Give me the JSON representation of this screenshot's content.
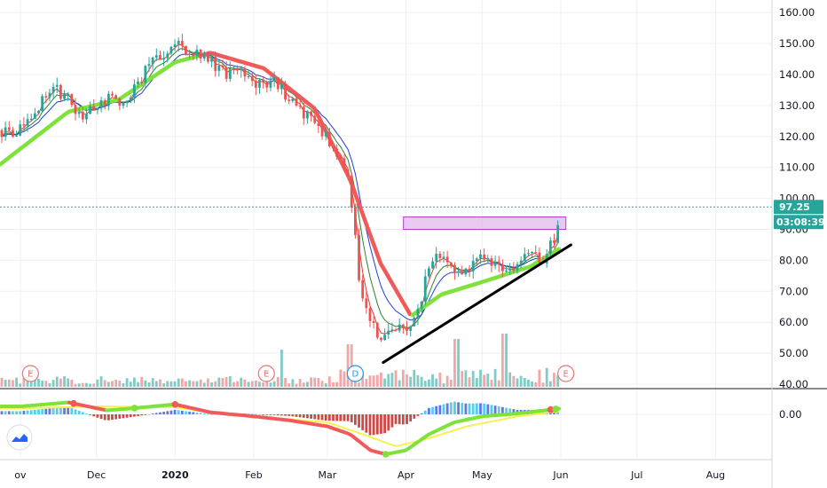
{
  "colors": {
    "up": "#26a69a",
    "down": "#ef5350",
    "upVol": "#80cbc4",
    "downVol": "#f4a6a6",
    "grid": "#eef0f3",
    "axis": "#131722",
    "maFast": "#e53935",
    "maMid": "#2e7d32",
    "maSlow": "#1e40d0",
    "maTrendRed": "#f05a5a",
    "maTrendGreen": "#7ee23a",
    "supportLine": "#000000",
    "resistanceBox": "#e2b6ee",
    "resistanceBoxBorder": "#b040c0",
    "priceTag": "#26a69a",
    "macdYellow": "#f6f050",
    "macdHistPos": "#36c6e8",
    "macdHistPosAlt": "#4a5fe0",
    "macdHistNeg": "#c62828",
    "eventBadge": "#e57373",
    "dividendBadge": "#2196f3"
  },
  "chart_data": [
    {
      "type": "candlestick",
      "title": "",
      "xlabel": "",
      "ylabel": "",
      "x_tick_labels": [
        "ov",
        "Dec",
        "2020",
        "Feb",
        "Mar",
        "Apr",
        "May",
        "Jun",
        "Jul",
        "Aug"
      ],
      "x_tick_dates": [
        "2019-11-01",
        "2019-12-01",
        "2020-01-01",
        "2020-02-01",
        "2020-03-01",
        "2020-04-01",
        "2020-05-01",
        "2020-06-01",
        "2020-07-01",
        "2020-08-01"
      ],
      "y_ticks": [
        "40.00",
        "50.00",
        "60.00",
        "70.00",
        "80.00",
        "90.00",
        "100.00",
        "110.00",
        "120.00",
        "130.00",
        "140.00",
        "150.00",
        "160.00"
      ],
      "ylim": [
        38,
        163
      ],
      "grid": true,
      "last_price": 97.25,
      "last_price_label": "97.25",
      "countdown_label": "03:08:39",
      "price_path": [
        [
          "2019-11-01",
          122
        ],
        [
          "2019-11-08",
          130
        ],
        [
          "2019-11-14",
          136
        ],
        [
          "2019-11-21",
          131
        ],
        [
          "2019-11-25",
          126
        ],
        [
          "2019-11-29",
          130
        ],
        [
          "2019-12-05",
          132
        ],
        [
          "2019-12-11",
          131
        ],
        [
          "2019-12-16",
          135
        ],
        [
          "2019-12-20",
          141
        ],
        [
          "2019-12-27",
          147
        ],
        [
          "2020-01-03",
          149
        ],
        [
          "2020-01-08",
          148
        ],
        [
          "2020-01-14",
          145
        ],
        [
          "2020-01-21",
          140
        ],
        [
          "2020-01-28",
          140
        ],
        [
          "2020-02-03",
          137
        ],
        [
          "2020-02-10",
          138
        ],
        [
          "2020-02-14",
          133
        ],
        [
          "2020-02-21",
          127
        ],
        [
          "2020-02-28",
          122
        ],
        [
          "2020-03-04",
          116
        ],
        [
          "2020-03-09",
          106
        ],
        [
          "2020-03-12",
          90
        ],
        [
          "2020-03-14",
          70
        ],
        [
          "2020-03-18",
          60
        ],
        [
          "2020-03-22",
          55
        ],
        [
          "2020-03-27",
          58
        ],
        [
          "2020-04-01",
          58
        ],
        [
          "2020-04-06",
          64
        ],
        [
          "2020-04-09",
          75
        ],
        [
          "2020-04-13",
          84
        ],
        [
          "2020-04-18",
          77
        ],
        [
          "2020-04-24",
          75
        ],
        [
          "2020-04-30",
          80
        ],
        [
          "2020-05-06",
          79
        ],
        [
          "2020-05-12",
          78
        ],
        [
          "2020-05-19",
          81
        ],
        [
          "2020-05-25",
          81
        ],
        [
          "2020-05-29",
          86
        ],
        [
          "2020-06-01",
          97
        ]
      ],
      "moving_average_trend": {
        "name": "",
        "points": [
          [
            "2019-11-01",
            116
          ],
          [
            "2019-11-20",
            128
          ],
          [
            "2019-12-10",
            132
          ],
          [
            "2020-01-01",
            144
          ],
          [
            "2020-01-15",
            147
          ],
          [
            "2020-02-05",
            142
          ],
          [
            "2020-02-25",
            129
          ],
          [
            "2020-03-10",
            106
          ],
          [
            "2020-03-22",
            79
          ],
          [
            "2020-04-03",
            62
          ],
          [
            "2020-04-15",
            69
          ],
          [
            "2020-05-01",
            73
          ],
          [
            "2020-05-20",
            78
          ],
          [
            "2020-06-01",
            84
          ]
        ]
      },
      "annotations": {
        "support_line": {
          "from": [
            "2020-03-23",
            47
          ],
          "to": [
            "2020-06-05",
            85
          ]
        },
        "resistance_zone": {
          "from_date": "2020-03-31",
          "to_date": "2020-06-03",
          "low": 90,
          "high": 94
        }
      },
      "events": [
        {
          "label": "E",
          "date": "2019-11-05"
        },
        {
          "label": "E",
          "date": "2020-02-06"
        },
        {
          "label": "D",
          "date": "2020-03-12"
        },
        {
          "label": "E",
          "date": "2020-06-03"
        }
      ],
      "volume_spikes": [
        [
          "2020-02-12",
          14
        ],
        [
          "2020-03-10",
          16
        ],
        [
          "2020-04-21",
          18
        ],
        [
          "2020-05-10",
          20
        ],
        [
          "2020-06-01",
          22
        ]
      ]
    },
    {
      "type": "line",
      "title": "",
      "y_ticks": [
        "0.00"
      ],
      "grid": true,
      "series": [
        {
          "points": [
            [
              "2019-11-01",
              2
            ],
            [
              "2019-11-20",
              3
            ],
            [
              "2019-12-05",
              1
            ],
            [
              "2019-12-15",
              1.5
            ],
            [
              "2020-01-01",
              2.5
            ],
            [
              "2020-01-15",
              0.5
            ],
            [
              "2020-02-01",
              -0.5
            ],
            [
              "2020-02-15",
              -1.5
            ],
            [
              "2020-03-01",
              -3
            ],
            [
              "2020-03-10",
              -5
            ],
            [
              "2020-03-18",
              -9
            ],
            [
              "2020-03-24",
              -10
            ],
            [
              "2020-04-01",
              -9
            ],
            [
              "2020-04-10",
              -5
            ],
            [
              "2020-04-20",
              -2
            ],
            [
              "2020-05-01",
              -0.5
            ],
            [
              "2020-05-15",
              0.2
            ],
            [
              "2020-06-01",
              1.5
            ]
          ]
        },
        {
          "points": [
            [
              "2019-11-01",
              1.5
            ],
            [
              "2019-12-01",
              2
            ],
            [
              "2020-01-01",
              1.8
            ],
            [
              "2020-01-20",
              0
            ],
            [
              "2020-02-10",
              -1
            ],
            [
              "2020-03-01",
              -2
            ],
            [
              "2020-03-15",
              -5
            ],
            [
              "2020-03-28",
              -8
            ],
            [
              "2020-04-10",
              -6
            ],
            [
              "2020-04-25",
              -3
            ],
            [
              "2020-05-15",
              -0.5
            ],
            [
              "2020-06-01",
              0.8
            ]
          ]
        }
      ]
    }
  ]
}
